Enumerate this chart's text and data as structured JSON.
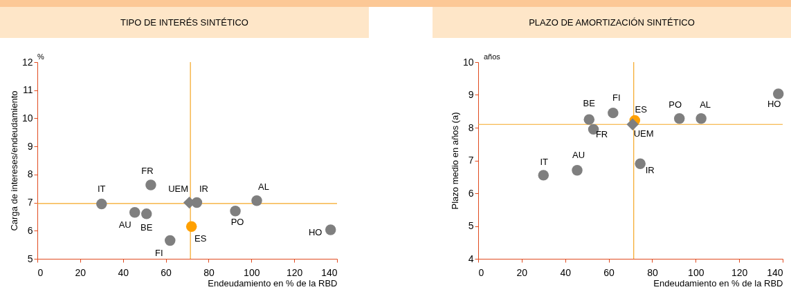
{
  "chart_data": [
    {
      "type": "scatter",
      "title": "TIPO DE INTERÉS SINTÉTICO",
      "xlabel": "Endeudamiento en % de la RBD",
      "ylabel": "Carga de intereses/endeudamiento",
      "annotations": [
        "%"
      ],
      "xlim": [
        0,
        140
      ],
      "xticks": [
        0,
        20,
        40,
        60,
        80,
        100,
        120,
        140
      ],
      "ylim": [
        5,
        12
      ],
      "yticks": [
        5,
        6,
        7,
        8,
        9,
        10,
        11,
        12
      ],
      "marker": "circle",
      "ref_lines": [
        {
          "axis": "x",
          "value": 71.5,
          "color": "#f5a623"
        },
        {
          "axis": "y",
          "value": 6.97,
          "color": "#f5a623"
        }
      ],
      "series": [
        {
          "name": "IT",
          "color": "#7f7f7f",
          "x": [
            30
          ],
          "values": [
            6.95
          ]
        },
        {
          "name": "AU",
          "color": "#7f7f7f",
          "x": [
            45.5
          ],
          "values": [
            6.65
          ]
        },
        {
          "name": "BE",
          "color": "#7f7f7f",
          "x": [
            51
          ],
          "values": [
            6.6
          ]
        },
        {
          "name": "FR",
          "color": "#7f7f7f",
          "x": [
            53
          ],
          "values": [
            7.63
          ]
        },
        {
          "name": "FI",
          "color": "#7f7f7f",
          "x": [
            62
          ],
          "values": [
            5.65
          ]
        },
        {
          "name": "UEM",
          "color": "#7f7f7f",
          "x": [
            71
          ],
          "values": [
            7.0
          ],
          "marker": "diamond"
        },
        {
          "name": "IR",
          "color": "#7f7f7f",
          "x": [
            74.5
          ],
          "values": [
            7.0
          ]
        },
        {
          "name": "ES",
          "color": "#ffa000",
          "x": [
            72
          ],
          "values": [
            6.15
          ]
        },
        {
          "name": "PO",
          "color": "#7f7f7f",
          "x": [
            92.5
          ],
          "values": [
            6.7
          ]
        },
        {
          "name": "AL",
          "color": "#7f7f7f",
          "x": [
            102.5
          ],
          "values": [
            7.07
          ]
        },
        {
          "name": "HO",
          "color": "#7f7f7f",
          "x": [
            137
          ],
          "values": [
            6.03
          ]
        }
      ]
    },
    {
      "type": "scatter",
      "title": "PLAZO DE AMORTIZACIÓN SINTÉTICO",
      "xlabel": "Endeudamiento en % de la RBD",
      "ylabel": "Plazo medio en años (a)",
      "annotations": [
        "años"
      ],
      "xlim": [
        0,
        140
      ],
      "xticks": [
        0,
        20,
        40,
        60,
        80,
        100,
        120,
        140
      ],
      "ylim": [
        4,
        10
      ],
      "yticks": [
        4,
        5,
        6,
        7,
        8,
        9,
        10
      ],
      "marker": "circle",
      "ref_lines": [
        {
          "axis": "x",
          "value": 71.5,
          "color": "#f5a623"
        },
        {
          "axis": "y",
          "value": 8.1,
          "color": "#f5a623"
        }
      ],
      "series": [
        {
          "name": "IT",
          "color": "#7f7f7f",
          "x": [
            30
          ],
          "values": [
            6.55
          ]
        },
        {
          "name": "AU",
          "color": "#7f7f7f",
          "x": [
            45.5
          ],
          "values": [
            6.7
          ]
        },
        {
          "name": "BE",
          "color": "#7f7f7f",
          "x": [
            51
          ],
          "values": [
            8.25
          ]
        },
        {
          "name": "FR",
          "color": "#7f7f7f",
          "x": [
            53
          ],
          "values": [
            7.95
          ]
        },
        {
          "name": "FI",
          "color": "#7f7f7f",
          "x": [
            62
          ],
          "values": [
            8.45
          ]
        },
        {
          "name": "UEM",
          "color": "#7f7f7f",
          "x": [
            71
          ],
          "values": [
            8.1
          ],
          "marker": "diamond"
        },
        {
          "name": "IR",
          "color": "#7f7f7f",
          "x": [
            74.5
          ],
          "values": [
            6.9
          ]
        },
        {
          "name": "ES",
          "color": "#ffa000",
          "x": [
            72
          ],
          "values": [
            8.22
          ]
        },
        {
          "name": "PO",
          "color": "#7f7f7f",
          "x": [
            92.5
          ],
          "values": [
            8.28
          ]
        },
        {
          "name": "AL",
          "color": "#7f7f7f",
          "x": [
            102.5
          ],
          "values": [
            8.28
          ]
        },
        {
          "name": "HO",
          "color": "#7f7f7f",
          "x": [
            138
          ],
          "values": [
            9.03
          ]
        }
      ]
    }
  ]
}
